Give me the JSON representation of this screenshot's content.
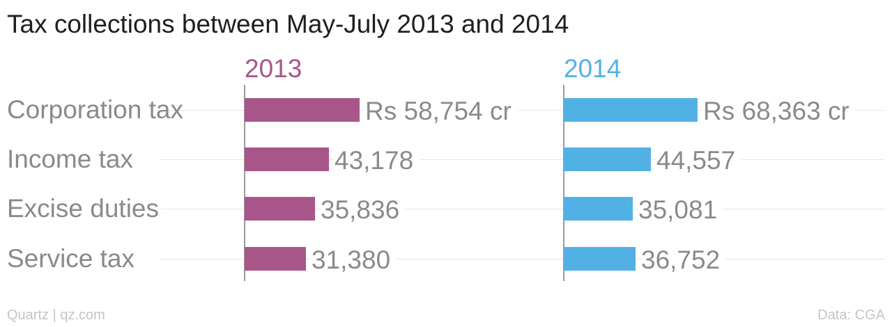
{
  "title": "Tax collections between May-July 2013 and 2014",
  "footer": {
    "source_left": "Quartz | qz.com",
    "source_right": "Data: CGA"
  },
  "chart_data": {
    "type": "bar",
    "orientation": "horizontal",
    "title": "Tax collections between May-July 2013 and 2014",
    "categories": [
      "Corporation tax",
      "Income tax",
      "Excise duties",
      "Service tax"
    ],
    "series": [
      {
        "name": "2013",
        "color": "#a8568a",
        "values": [
          58754,
          43178,
          35836,
          31380
        ],
        "labels": [
          "Rs 58,754 cr",
          "43,178",
          "35,836",
          "31,380"
        ]
      },
      {
        "name": "2014",
        "color": "#52b1e4",
        "values": [
          68363,
          44557,
          35081,
          36752
        ],
        "labels": [
          "Rs 68,363 cr",
          "44,557",
          "35,081",
          "36,752"
        ]
      }
    ],
    "grid": false,
    "legend": "panel headers"
  }
}
